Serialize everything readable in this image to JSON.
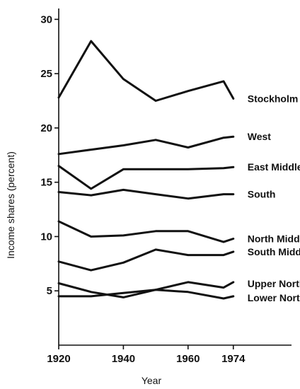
{
  "chart_data": {
    "type": "line",
    "xlabel": "Year",
    "ylabel": "Income shares (percent)",
    "xlim": [
      1920,
      1992
    ],
    "ylim": [
      0,
      31
    ],
    "xticks": [
      1920,
      1940,
      1960,
      1974
    ],
    "yticks": [
      5,
      10,
      15,
      20,
      25,
      30
    ],
    "grid": false,
    "series": [
      {
        "name": "Stockholm",
        "x": [
          1920,
          1930,
          1940,
          1950,
          1960,
          1971,
          1974
        ],
        "values": [
          22.8,
          28.0,
          24.5,
          22.5,
          23.4,
          24.3,
          22.7
        ]
      },
      {
        "name": "West",
        "x": [
          1920,
          1930,
          1940,
          1950,
          1960,
          1971,
          1974
        ],
        "values": [
          17.6,
          18.0,
          18.4,
          18.9,
          18.2,
          19.1,
          19.2
        ]
      },
      {
        "name": "East Middle",
        "x": [
          1920,
          1930,
          1940,
          1950,
          1960,
          1971,
          1974
        ],
        "values": [
          16.5,
          14.4,
          16.2,
          16.2,
          16.2,
          16.3,
          16.4
        ]
      },
      {
        "name": "South",
        "x": [
          1920,
          1930,
          1940,
          1950,
          1960,
          1971,
          1974
        ],
        "values": [
          14.1,
          13.8,
          14.3,
          13.9,
          13.5,
          13.9,
          13.9
        ]
      },
      {
        "name": "North Middle",
        "x": [
          1920,
          1930,
          1940,
          1950,
          1960,
          1971,
          1974
        ],
        "values": [
          11.4,
          10.0,
          10.1,
          10.5,
          10.5,
          9.5,
          9.8
        ]
      },
      {
        "name": "South Middle",
        "x": [
          1920,
          1930,
          1940,
          1950,
          1960,
          1971,
          1974
        ],
        "values": [
          7.7,
          6.9,
          7.6,
          8.8,
          8.3,
          8.3,
          8.6
        ]
      },
      {
        "name": "Upper North",
        "x": [
          1920,
          1930,
          1940,
          1950,
          1960,
          1971,
          1974
        ],
        "values": [
          5.7,
          4.9,
          4.4,
          5.1,
          5.8,
          5.3,
          5.8
        ]
      },
      {
        "name": "Lower North",
        "x": [
          1920,
          1930,
          1940,
          1950,
          1960,
          1971,
          1974
        ],
        "values": [
          4.5,
          4.5,
          4.8,
          5.1,
          4.9,
          4.3,
          4.5
        ]
      }
    ]
  }
}
